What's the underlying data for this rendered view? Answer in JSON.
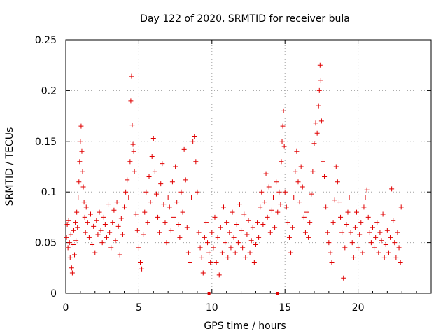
{
  "chart_data": {
    "type": "scatter",
    "title": "Day 122 of 2020, SRMTID for receiver bula",
    "xlabel": "GPS time / hours",
    "ylabel": "SRMTID / TECUs",
    "xlim": [
      0,
      25
    ],
    "ylim": [
      0,
      0.25
    ],
    "x_ticks": [
      0,
      5,
      10,
      15,
      20
    ],
    "x_tick_labels": [
      "0",
      "5",
      "10",
      "15",
      "20"
    ],
    "y_ticks": [
      0,
      0.05,
      0.1,
      0.15,
      0.2,
      0.25
    ],
    "y_tick_labels": [
      "0",
      "0.05",
      "0.1",
      "0.15",
      "0.2",
      "0.25"
    ],
    "grid": true,
    "marker": "+",
    "color": "#e00000",
    "series": [
      {
        "name": "SRMTID",
        "points": [
          [
            0.05,
            0.055
          ],
          [
            0.1,
            0.068
          ],
          [
            0.15,
            0.045
          ],
          [
            0.2,
            0.072
          ],
          [
            0.25,
            0.05
          ],
          [
            0.3,
            0.035
          ],
          [
            0.35,
            0.058
          ],
          [
            0.4,
            0.025
          ],
          [
            0.45,
            0.02
          ],
          [
            0.5,
            0.048
          ],
          [
            0.55,
            0.062
          ],
          [
            0.6,
            0.038
          ],
          [
            0.65,
            0.07
          ],
          [
            0.7,
            0.052
          ],
          [
            0.75,
            0.08
          ],
          [
            0.8,
            0.065
          ],
          [
            0.85,
            0.095
          ],
          [
            0.9,
            0.11
          ],
          [
            0.95,
            0.13
          ],
          [
            1.0,
            0.15
          ],
          [
            1.05,
            0.165
          ],
          [
            1.1,
            0.14
          ],
          [
            1.15,
            0.12
          ],
          [
            1.2,
            0.105
          ],
          [
            1.25,
            0.09
          ],
          [
            1.3,
            0.075
          ],
          [
            1.35,
            0.06
          ],
          [
            1.4,
            0.085
          ],
          [
            1.5,
            0.07
          ],
          [
            1.6,
            0.055
          ],
          [
            1.7,
            0.078
          ],
          [
            1.8,
            0.048
          ],
          [
            1.9,
            0.066
          ],
          [
            2.0,
            0.04
          ],
          [
            2.1,
            0.072
          ],
          [
            2.2,
            0.058
          ],
          [
            2.3,
            0.08
          ],
          [
            2.4,
            0.062
          ],
          [
            2.5,
            0.05
          ],
          [
            2.6,
            0.075
          ],
          [
            2.7,
            0.068
          ],
          [
            2.8,
            0.055
          ],
          [
            2.9,
            0.088
          ],
          [
            3.0,
            0.06
          ],
          [
            3.1,
            0.045
          ],
          [
            3.2,
            0.07
          ],
          [
            3.3,
            0.082
          ],
          [
            3.4,
            0.052
          ],
          [
            3.5,
            0.09
          ],
          [
            3.6,
            0.066
          ],
          [
            3.7,
            0.038
          ],
          [
            3.8,
            0.074
          ],
          [
            3.9,
            0.058
          ],
          [
            4.0,
            0.085
          ],
          [
            4.1,
            0.1
          ],
          [
            4.2,
            0.112
          ],
          [
            4.3,
            0.095
          ],
          [
            4.4,
            0.13
          ],
          [
            4.45,
            0.19
          ],
          [
            4.5,
            0.214
          ],
          [
            4.55,
            0.166
          ],
          [
            4.6,
            0.147
          ],
          [
            4.65,
            0.14
          ],
          [
            4.7,
            0.12
          ],
          [
            4.8,
            0.078
          ],
          [
            4.9,
            0.062
          ],
          [
            5.0,
            0.045
          ],
          [
            5.1,
            0.03
          ],
          [
            5.2,
            0.024
          ],
          [
            5.3,
            0.058
          ],
          [
            5.4,
            0.08
          ],
          [
            5.5,
            0.1
          ],
          [
            5.6,
            0.07
          ],
          [
            5.7,
            0.115
          ],
          [
            5.8,
            0.09
          ],
          [
            5.9,
            0.135
          ],
          [
            6.0,
            0.153
          ],
          [
            6.1,
            0.12
          ],
          [
            6.2,
            0.098
          ],
          [
            6.3,
            0.075
          ],
          [
            6.4,
            0.06
          ],
          [
            6.5,
            0.108
          ],
          [
            6.6,
            0.128
          ],
          [
            6.7,
            0.088
          ],
          [
            6.8,
            0.07
          ],
          [
            6.9,
            0.05
          ],
          [
            7.0,
            0.095
          ],
          [
            7.1,
            0.085
          ],
          [
            7.2,
            0.062
          ],
          [
            7.3,
            0.11
          ],
          [
            7.4,
            0.075
          ],
          [
            7.5,
            0.125
          ],
          [
            7.6,
            0.09
          ],
          [
            7.7,
            0.068
          ],
          [
            7.8,
            0.055
          ],
          [
            7.9,
            0.1
          ],
          [
            8.0,
            0.08
          ],
          [
            8.1,
            0.142
          ],
          [
            8.2,
            0.112
          ],
          [
            8.3,
            0.065
          ],
          [
            8.4,
            0.04
          ],
          [
            8.5,
            0.03
          ],
          [
            8.6,
            0.095
          ],
          [
            8.7,
            0.15
          ],
          [
            8.8,
            0.155
          ],
          [
            8.9,
            0.13
          ],
          [
            9.0,
            0.1
          ],
          [
            9.1,
            0.06
          ],
          [
            9.2,
            0.045
          ],
          [
            9.3,
            0.035
          ],
          [
            9.4,
            0.02
          ],
          [
            9.5,
            0.055
          ],
          [
            9.6,
            0.07
          ],
          [
            9.7,
            0.05
          ],
          [
            9.8,
            0.04
          ],
          [
            9.9,
            0.03
          ],
          [
            10.0,
            0.06
          ],
          [
            10.1,
            0.045
          ],
          [
            10.2,
            0.075
          ],
          [
            10.3,
            0.03
          ],
          [
            10.4,
            0.055
          ],
          [
            10.5,
            0.018
          ],
          [
            10.6,
            0.065
          ],
          [
            10.7,
            0.04
          ],
          [
            10.8,
            0.085
          ],
          [
            10.9,
            0.05
          ],
          [
            11.0,
            0.07
          ],
          [
            11.1,
            0.035
          ],
          [
            11.2,
            0.06
          ],
          [
            11.3,
            0.045
          ],
          [
            11.4,
            0.08
          ],
          [
            11.5,
            0.055
          ],
          [
            11.6,
            0.04
          ],
          [
            11.7,
            0.068
          ],
          [
            11.8,
            0.05
          ],
          [
            11.9,
            0.088
          ],
          [
            12.0,
            0.062
          ],
          [
            12.1,
            0.045
          ],
          [
            12.2,
            0.078
          ],
          [
            12.3,
            0.035
          ],
          [
            12.4,
            0.058
          ],
          [
            12.5,
            0.072
          ],
          [
            12.6,
            0.04
          ],
          [
            12.7,
            0.052
          ],
          [
            12.8,
            0.065
          ],
          [
            12.9,
            0.03
          ],
          [
            13.0,
            0.048
          ],
          [
            13.1,
            0.07
          ],
          [
            13.2,
            0.055
          ],
          [
            13.3,
            0.085
          ],
          [
            13.4,
            0.1
          ],
          [
            13.5,
            0.068
          ],
          [
            13.6,
            0.09
          ],
          [
            13.7,
            0.118
          ],
          [
            13.8,
            0.075
          ],
          [
            13.9,
            0.105
          ],
          [
            14.0,
            0.06
          ],
          [
            14.1,
            0.082
          ],
          [
            14.2,
            0.095
          ],
          [
            14.3,
            0.065
          ],
          [
            14.4,
            0.11
          ],
          [
            14.5,
            0.08
          ],
          [
            14.6,
            0.1
          ],
          [
            14.7,
            0.088
          ],
          [
            14.75,
            0.13
          ],
          [
            14.8,
            0.15
          ],
          [
            14.85,
            0.165
          ],
          [
            14.9,
            0.18
          ],
          [
            14.95,
            0.145
          ],
          [
            15.0,
            0.1
          ],
          [
            15.1,
            0.085
          ],
          [
            15.2,
            0.07
          ],
          [
            15.3,
            0.055
          ],
          [
            15.4,
            0.04
          ],
          [
            15.5,
            0.065
          ],
          [
            15.6,
            0.095
          ],
          [
            15.7,
            0.12
          ],
          [
            15.8,
            0.14
          ],
          [
            15.9,
            0.11
          ],
          [
            16.0,
            0.09
          ],
          [
            16.1,
            0.125
          ],
          [
            16.2,
            0.105
          ],
          [
            16.3,
            0.075
          ],
          [
            16.4,
            0.06
          ],
          [
            16.5,
            0.08
          ],
          [
            16.6,
            0.055
          ],
          [
            16.7,
            0.07
          ],
          [
            16.8,
            0.098
          ],
          [
            16.9,
            0.12
          ],
          [
            17.0,
            0.148
          ],
          [
            17.1,
            0.168
          ],
          [
            17.2,
            0.158
          ],
          [
            17.3,
            0.185
          ],
          [
            17.35,
            0.2
          ],
          [
            17.4,
            0.225
          ],
          [
            17.45,
            0.21
          ],
          [
            17.5,
            0.17
          ],
          [
            17.6,
            0.13
          ],
          [
            17.7,
            0.115
          ],
          [
            17.8,
            0.085
          ],
          [
            17.9,
            0.06
          ],
          [
            18.0,
            0.05
          ],
          [
            18.1,
            0.04
          ],
          [
            18.2,
            0.03
          ],
          [
            18.3,
            0.07
          ],
          [
            18.4,
            0.092
          ],
          [
            18.5,
            0.125
          ],
          [
            18.6,
            0.11
          ],
          [
            18.7,
            0.09
          ],
          [
            18.8,
            0.075
          ],
          [
            18.9,
            0.06
          ],
          [
            19.0,
            0.015
          ],
          [
            19.1,
            0.045
          ],
          [
            19.2,
            0.068
          ],
          [
            19.3,
            0.08
          ],
          [
            19.4,
            0.095
          ],
          [
            19.5,
            0.06
          ],
          [
            19.6,
            0.05
          ],
          [
            19.7,
            0.035
          ],
          [
            19.8,
            0.065
          ],
          [
            19.9,
            0.08
          ],
          [
            20.0,
            0.045
          ],
          [
            20.1,
            0.058
          ],
          [
            20.2,
            0.07
          ],
          [
            20.3,
            0.04
          ],
          [
            20.4,
            0.085
          ],
          [
            20.5,
            0.095
          ],
          [
            20.6,
            0.102
          ],
          [
            20.7,
            0.075
          ],
          [
            20.8,
            0.06
          ],
          [
            20.9,
            0.05
          ],
          [
            21.0,
            0.065
          ],
          [
            21.1,
            0.045
          ],
          [
            21.2,
            0.055
          ],
          [
            21.3,
            0.07
          ],
          [
            21.4,
            0.04
          ],
          [
            21.5,
            0.06
          ],
          [
            21.6,
            0.052
          ],
          [
            21.7,
            0.078
          ],
          [
            21.8,
            0.035
          ],
          [
            21.9,
            0.048
          ],
          [
            22.0,
            0.062
          ],
          [
            22.1,
            0.04
          ],
          [
            22.2,
            0.055
          ],
          [
            22.3,
            0.103
          ],
          [
            22.4,
            0.072
          ],
          [
            22.5,
            0.05
          ],
          [
            22.6,
            0.035
          ],
          [
            22.7,
            0.06
          ],
          [
            22.8,
            0.045
          ],
          [
            22.9,
            0.03
          ],
          [
            22.95,
            0.085
          ]
        ]
      }
    ],
    "axis_markers": [
      9.8,
      14.5
    ]
  }
}
